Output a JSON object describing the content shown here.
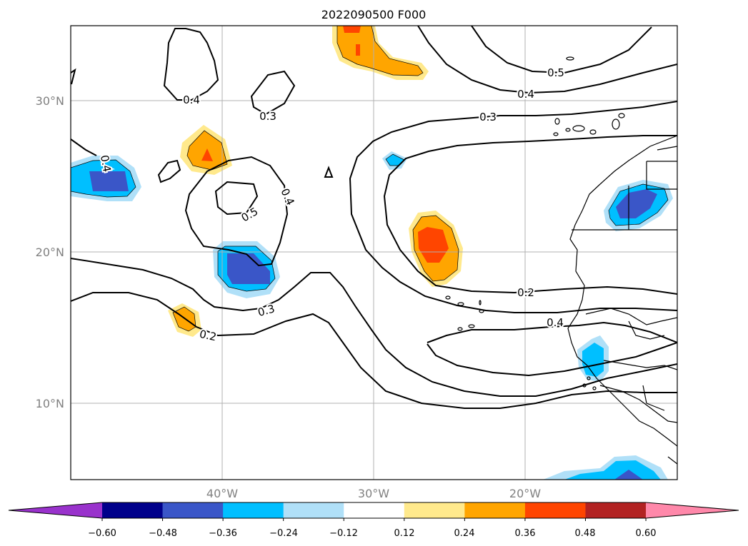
{
  "map": {
    "title": "2022090500 F000",
    "lat_labels": [
      "30°N",
      "20°N",
      "10°N"
    ],
    "lon_labels": [
      "40°W",
      "30°W",
      "20°W"
    ],
    "contour_labels": [
      "0.4",
      "0.3",
      "0.4",
      "0.5",
      "0.4",
      "0.3",
      "0.2",
      "0.5",
      "0.4",
      "0.3",
      "0.2",
      "0.4"
    ]
  },
  "colorbar": {
    "tick_labels": [
      "−0.60",
      "−0.48",
      "−0.36",
      "−0.24",
      "−0.12",
      "0.12",
      "0.24",
      "0.36",
      "0.48",
      "0.60"
    ],
    "colors": [
      "#9932cc",
      "#00008b",
      "#3a56c8",
      "#00bfff",
      "#b0e0f8",
      "#ffffff",
      "#ffe98c",
      "#ffa500",
      "#ff4500",
      "#b22222",
      "#ff88aa"
    ]
  },
  "legend_colors": {
    "neg_light": "#b0e0f8",
    "neg_mid": "#00bfff",
    "neg_strong": "#3a56c8",
    "pos_light": "#ffe98c",
    "pos_mid": "#ffa500",
    "pos_strong": "#ff4500"
  }
}
